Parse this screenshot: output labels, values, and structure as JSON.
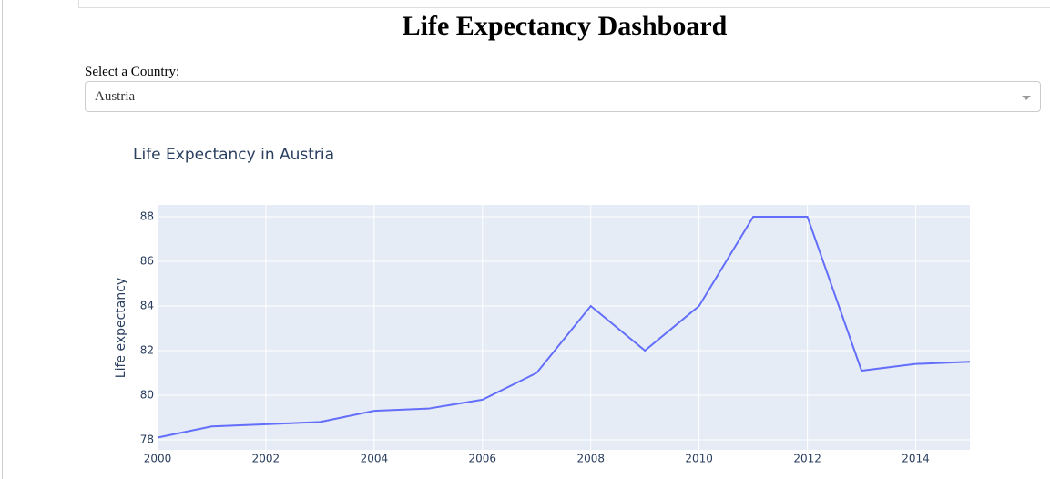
{
  "header": {
    "title": "Life Expectancy Dashboard"
  },
  "dropdown": {
    "label": "Select a Country:",
    "selected": "Austria"
  },
  "chart_data": {
    "type": "line",
    "title": "Life Expectancy in Austria",
    "y_label": "Life expectancy",
    "x": [
      2000,
      2001,
      2002,
      2003,
      2004,
      2005,
      2006,
      2007,
      2008,
      2009,
      2010,
      2011,
      2012,
      2013,
      2014,
      2015
    ],
    "values": [
      78.1,
      78.6,
      78.7,
      78.8,
      79.3,
      79.4,
      79.8,
      81.0,
      84,
      82,
      84,
      88,
      88,
      81.1,
      81.4,
      81.5
    ],
    "color": "#636efa",
    "xlim": [
      2000,
      2015
    ],
    "xticks": [
      2000,
      2002,
      2004,
      2006,
      2008,
      2010,
      2012,
      2014
    ],
    "ylim": [
      77.55,
      88.53
    ],
    "yticks": [
      78,
      80,
      82,
      84,
      86,
      88
    ],
    "grid": true
  }
}
